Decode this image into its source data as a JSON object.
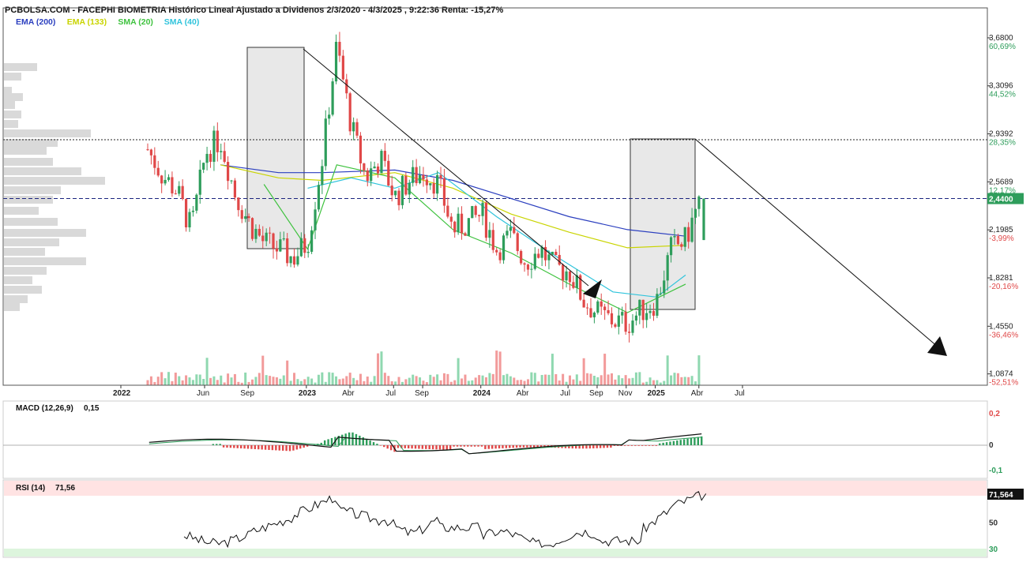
{
  "header": {
    "title": "PCBOLSA.COM - FACEPHI BIOMETRIA Histórico Lineal Ajustado a Dividenos 2/3/2020 - 4/3/2025 , 9:22:36 Renta: -15,27%"
  },
  "legend": [
    {
      "label": "EMA (200)",
      "color": "#2b3fbf"
    },
    {
      "label": "EMA (133)",
      "color": "#c9d400"
    },
    {
      "label": "SMA (20)",
      "color": "#3ec23e"
    },
    {
      "label": "SMA (40)",
      "color": "#30c4dc"
    }
  ],
  "colors": {
    "up": "#2e9d5b",
    "down": "#e04848",
    "volume_up": "#8fd8b0",
    "volume_down": "#f29a9a",
    "last_price_line": "#1a237e",
    "last_price_tag": "#2e9d5b",
    "rsi_overbought": "#ffe3e3",
    "rsi_oversold": "#ddf5dd"
  },
  "price_axis": [
    {
      "value": "3,6800",
      "pct": "60,69%",
      "pct_color": "#2e9d5b"
    },
    {
      "value": "3,3096",
      "pct": "44,52%",
      "pct_color": "#2e9d5b"
    },
    {
      "value": "2,9392",
      "pct": "28,35%",
      "pct_color": "#2e9d5b"
    },
    {
      "value": "2,5689",
      "pct": "12,17%",
      "pct_color": "#2e9d5b"
    },
    {
      "value": "2,1985",
      "pct": "-3,99%",
      "pct_color": "#e04848"
    },
    {
      "value": "1,8281",
      "pct": "-20,16%",
      "pct_color": "#e04848"
    },
    {
      "value": "1,4550",
      "pct": "-36,46%",
      "pct_color": "#e04848"
    },
    {
      "value": "1,0874",
      "pct": "-52,51%",
      "pct_color": "#e04848"
    }
  ],
  "last_price": "2,4400",
  "time_axis": [
    {
      "label": "2022",
      "bold": true
    },
    {
      "label": "Jun",
      "bold": false
    },
    {
      "label": "Sep",
      "bold": false
    },
    {
      "label": "2023",
      "bold": true
    },
    {
      "label": "Abr",
      "bold": false
    },
    {
      "label": "Jul",
      "bold": false
    },
    {
      "label": "Sep",
      "bold": false
    },
    {
      "label": "2024",
      "bold": true
    },
    {
      "label": "Abr",
      "bold": false
    },
    {
      "label": "Jul",
      "bold": false
    },
    {
      "label": "Sep",
      "bold": false
    },
    {
      "label": "Nov",
      "bold": false
    },
    {
      "label": "2025",
      "bold": true
    },
    {
      "label": "Abr",
      "bold": false
    },
    {
      "label": "Jul",
      "bold": false
    }
  ],
  "macd": {
    "label": "MACD (12,26,9)",
    "value": "0,15",
    "axis": [
      {
        "value": "0,2",
        "color": "#e04848"
      },
      {
        "value": "0",
        "color": "#333333"
      },
      {
        "value": "-0,1",
        "color": "#2e9d5b"
      }
    ]
  },
  "rsi": {
    "label": "RSI (14)",
    "value": "71,56",
    "current_tag": "71,564",
    "axis": [
      {
        "value": "50",
        "color": "#333333"
      },
      {
        "value": "30",
        "color": "#2e9d5b"
      }
    ]
  },
  "chart_data": {
    "type": "candlestick",
    "title": "PCBOLSA.COM - FACEPHI BIOMETRIA Histórico Lineal Ajustado a Dividenos 2/3/2020 - 4/3/2025 , 9:22:36 Renta: -15,27%",
    "x_range": [
      "2022-01",
      "2025-07"
    ],
    "y_range": [
      1.0,
      3.85
    ],
    "current_price": 2.44,
    "return_pct": -15.27,
    "price_path": [
      [
        "2022-01",
        2.82
      ],
      [
        "2022-02",
        2.62
      ],
      [
        "2022-03",
        2.5
      ],
      [
        "2022-04",
        2.2
      ],
      [
        "2022-05",
        2.8
      ],
      [
        "2022-06",
        2.9
      ],
      [
        "2022-07",
        2.48
      ],
      [
        "2022-08",
        2.25
      ],
      [
        "2022-09",
        2.1
      ],
      [
        "2022-10",
        2.05
      ],
      [
        "2022-11",
        1.98
      ],
      [
        "2022-12",
        2.1
      ],
      [
        "2023-01",
        2.75
      ],
      [
        "2023-02",
        3.62
      ],
      [
        "2023-03",
        3.0
      ],
      [
        "2023-04",
        2.6
      ],
      [
        "2023-05",
        2.75
      ],
      [
        "2023-06",
        2.45
      ],
      [
        "2023-07",
        2.58
      ],
      [
        "2023-08",
        2.65
      ],
      [
        "2023-09",
        2.55
      ],
      [
        "2023-10",
        2.2
      ],
      [
        "2023-11",
        2.25
      ],
      [
        "2023-12",
        2.32
      ],
      [
        "2024-01",
        2.05
      ],
      [
        "2024-02",
        2.15
      ],
      [
        "2024-03",
        1.95
      ],
      [
        "2024-04",
        2.05
      ],
      [
        "2024-05",
        1.9
      ],
      [
        "2024-06",
        1.88
      ],
      [
        "2024-07",
        1.65
      ],
      [
        "2024-08",
        1.55
      ],
      [
        "2024-09",
        1.5
      ],
      [
        "2024-10",
        1.48
      ],
      [
        "2024-11",
        1.58
      ],
      [
        "2024-12",
        1.65
      ],
      [
        "2025-01",
        2.05
      ],
      [
        "2025-02",
        2.12
      ],
      [
        "2025-03",
        2.44
      ]
    ],
    "series": [
      {
        "name": "EMA (200)",
        "values": [
          [
            "2022-06",
            2.7
          ],
          [
            "2022-10",
            2.64
          ],
          [
            "2023-01",
            2.64
          ],
          [
            "2023-06",
            2.66
          ],
          [
            "2023-10",
            2.58
          ],
          [
            "2024-02",
            2.44
          ],
          [
            "2024-06",
            2.3
          ],
          [
            "2024-10",
            2.2
          ],
          [
            "2025-02",
            2.15
          ]
        ]
      },
      {
        "name": "EMA (133)",
        "values": [
          [
            "2022-06",
            2.7
          ],
          [
            "2022-10",
            2.6
          ],
          [
            "2023-01",
            2.58
          ],
          [
            "2023-06",
            2.64
          ],
          [
            "2023-10",
            2.52
          ],
          [
            "2024-02",
            2.32
          ],
          [
            "2024-06",
            2.18
          ],
          [
            "2024-10",
            2.06
          ],
          [
            "2025-02",
            2.08
          ]
        ]
      },
      {
        "name": "SMA (20)",
        "values": [
          [
            "2022-09",
            2.55
          ],
          [
            "2022-12",
            2.05
          ],
          [
            "2023-02",
            2.7
          ],
          [
            "2023-06",
            2.6
          ],
          [
            "2023-10",
            2.2
          ],
          [
            "2024-02",
            2.02
          ],
          [
            "2024-06",
            1.78
          ],
          [
            "2024-10",
            1.56
          ],
          [
            "2025-02",
            1.78
          ]
        ]
      },
      {
        "name": "SMA (40)",
        "values": [
          [
            "2022-12",
            2.52
          ],
          [
            "2023-03",
            2.6
          ],
          [
            "2023-06",
            2.52
          ],
          [
            "2023-09",
            2.64
          ],
          [
            "2024-01",
            2.3
          ],
          [
            "2024-05",
            2.0
          ],
          [
            "2024-09",
            1.72
          ],
          [
            "2024-12",
            1.68
          ],
          [
            "2025-02",
            1.85
          ]
        ]
      }
    ],
    "macd": {
      "name": "MACD (12,26,9)",
      "current": 0.15,
      "y_range": [
        -0.1,
        0.2
      ]
    },
    "rsi": {
      "name": "RSI (14)",
      "current": 71.56,
      "levels": [
        30,
        50,
        70
      ]
    },
    "legend_position": "top-left",
    "grid": false
  }
}
